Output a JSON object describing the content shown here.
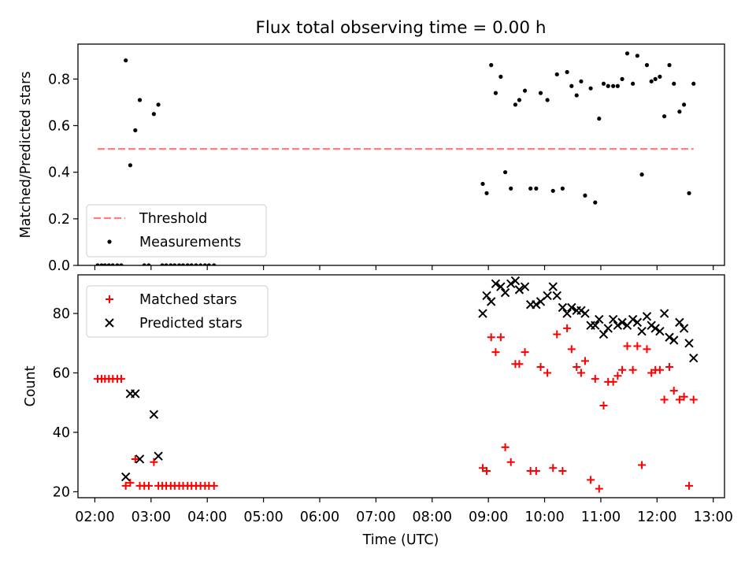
{
  "figure": {
    "title": "Flux total observing time = 0.00 h",
    "xlabel": "Time (UTC)"
  },
  "chart_data": [
    {
      "type": "scatter",
      "id": "ratio",
      "ylabel": "Matched/Predicted stars",
      "xlim": [
        1.7,
        13.2
      ],
      "ylim": [
        0,
        0.95
      ],
      "yticks": [
        0.0,
        0.2,
        0.4,
        0.6,
        0.8
      ],
      "ytick_labels": [
        "0.0",
        "0.2",
        "0.4",
        "0.6",
        "0.8"
      ],
      "grid": false,
      "legend": {
        "placement": "lower-left"
      },
      "series": [
        {
          "name": "Threshold",
          "kind": "line",
          "color": "#ff7f7f",
          "x": [
            2.05,
            12.65
          ],
          "y": [
            0.5,
            0.5
          ]
        },
        {
          "name": "Measurements",
          "kind": "dot",
          "color": "#000000",
          "x": [
            2.05,
            2.12,
            2.18,
            2.25,
            2.32,
            2.4,
            2.47,
            2.55,
            2.63,
            2.72,
            2.8,
            2.88,
            2.96,
            3.05,
            3.13,
            3.2,
            3.27,
            3.35,
            3.42,
            3.5,
            3.57,
            3.65,
            3.72,
            3.8,
            3.88,
            3.96,
            4.03,
            4.12,
            8.9,
            8.97,
            9.05,
            9.13,
            9.22,
            9.3,
            9.4,
            9.48,
            9.55,
            9.65,
            9.75,
            9.85,
            9.93,
            10.05,
            10.15,
            10.22,
            10.32,
            10.4,
            10.48,
            10.57,
            10.65,
            10.72,
            10.82,
            10.9,
            10.97,
            11.05,
            11.13,
            11.22,
            11.3,
            11.38,
            11.47,
            11.57,
            11.65,
            11.73,
            11.82,
            11.9,
            11.97,
            12.05,
            12.13,
            12.22,
            12.3,
            12.4,
            12.48,
            12.57,
            12.65
          ],
          "y": [
            0.0,
            0.0,
            0.0,
            0.0,
            0.0,
            0.0,
            0.0,
            0.88,
            0.43,
            0.58,
            0.71,
            0.0,
            0.0,
            0.65,
            0.69,
            0.0,
            0.0,
            0.0,
            0.0,
            0.0,
            0.0,
            0.0,
            0.0,
            0.0,
            0.0,
            0.0,
            0.0,
            0.0,
            0.35,
            0.31,
            0.86,
            0.74,
            0.81,
            0.4,
            0.33,
            0.69,
            0.71,
            0.75,
            0.33,
            0.33,
            0.74,
            0.71,
            0.32,
            0.82,
            0.33,
            0.83,
            0.77,
            0.73,
            0.79,
            0.3,
            0.76,
            0.27,
            0.63,
            0.78,
            0.77,
            0.77,
            0.77,
            0.8,
            0.91,
            0.78,
            0.9,
            0.39,
            0.86,
            0.79,
            0.8,
            0.81,
            0.64,
            0.86,
            0.78,
            0.66,
            0.69,
            0.31,
            0.78
          ]
        }
      ]
    },
    {
      "type": "scatter",
      "id": "counts",
      "ylabel": "Count",
      "xlim": [
        1.7,
        13.2
      ],
      "ylim": [
        18,
        93
      ],
      "yticks": [
        20,
        40,
        60,
        80
      ],
      "ytick_labels": [
        "20",
        "40",
        "60",
        "80"
      ],
      "xticks": [
        2,
        3,
        4,
        5,
        6,
        7,
        8,
        9,
        10,
        11,
        12,
        13
      ],
      "xtick_labels": [
        "02:00",
        "03:00",
        "04:00",
        "05:00",
        "06:00",
        "07:00",
        "08:00",
        "09:00",
        "10:00",
        "11:00",
        "12:00",
        "13:00"
      ],
      "grid": false,
      "legend": {
        "placement": "top-left"
      },
      "series": [
        {
          "name": "Matched stars",
          "kind": "plus",
          "color": "#ff0000",
          "x": [
            2.05,
            2.12,
            2.18,
            2.25,
            2.32,
            2.4,
            2.47,
            2.55,
            2.63,
            2.72,
            2.8,
            2.88,
            2.96,
            3.05,
            3.13,
            3.2,
            3.27,
            3.35,
            3.42,
            3.5,
            3.57,
            3.65,
            3.72,
            3.8,
            3.88,
            3.96,
            4.03,
            4.12,
            8.9,
            8.97,
            9.05,
            9.13,
            9.22,
            9.3,
            9.4,
            9.48,
            9.55,
            9.65,
            9.75,
            9.85,
            9.93,
            10.05,
            10.15,
            10.22,
            10.32,
            10.4,
            10.48,
            10.57,
            10.65,
            10.72,
            10.82,
            10.9,
            10.97,
            11.05,
            11.13,
            11.22,
            11.3,
            11.38,
            11.47,
            11.57,
            11.65,
            11.73,
            11.82,
            11.9,
            11.97,
            12.05,
            12.13,
            12.22,
            12.3,
            12.4,
            12.48,
            12.57,
            12.65
          ],
          "y": [
            58,
            58,
            58,
            58,
            58,
            58,
            58,
            22,
            23,
            31,
            22,
            22,
            22,
            30,
            22,
            22,
            22,
            22,
            22,
            22,
            22,
            22,
            22,
            22,
            22,
            22,
            22,
            22,
            28,
            27,
            72,
            67,
            72,
            35,
            30,
            63,
            63,
            67,
            27,
            27,
            62,
            60,
            28,
            73,
            27,
            75,
            68,
            62,
            60,
            64,
            24,
            58,
            21,
            49,
            57,
            57,
            59,
            61,
            69,
            61,
            69,
            29,
            68,
            60,
            61,
            61,
            51,
            62,
            54,
            51,
            52,
            22,
            51
          ]
        },
        {
          "name": "Predicted stars",
          "kind": "x",
          "color": "#000000",
          "x": [
            2.55,
            2.63,
            2.72,
            2.8,
            3.05,
            3.13,
            8.9,
            8.97,
            9.05,
            9.13,
            9.22,
            9.3,
            9.4,
            9.48,
            9.55,
            9.65,
            9.75,
            9.85,
            9.93,
            10.05,
            10.15,
            10.22,
            10.32,
            10.4,
            10.48,
            10.57,
            10.65,
            10.72,
            10.82,
            10.9,
            10.97,
            11.05,
            11.13,
            11.22,
            11.3,
            11.38,
            11.47,
            11.57,
            11.65,
            11.73,
            11.82,
            11.9,
            11.97,
            12.05,
            12.13,
            12.22,
            12.3,
            12.4,
            12.48,
            12.57,
            12.65
          ],
          "y": [
            25,
            53,
            53,
            31,
            46,
            32,
            80,
            86,
            84,
            90,
            89,
            87,
            90,
            91,
            88,
            89,
            83,
            83,
            84,
            86,
            89,
            86,
            82,
            80,
            82,
            81,
            81,
            80,
            76,
            76,
            78,
            73,
            75,
            78,
            76,
            77,
            76,
            78,
            77,
            74,
            79,
            76,
            75,
            74,
            80,
            72,
            71,
            77,
            75,
            70,
            65
          ]
        }
      ]
    }
  ]
}
